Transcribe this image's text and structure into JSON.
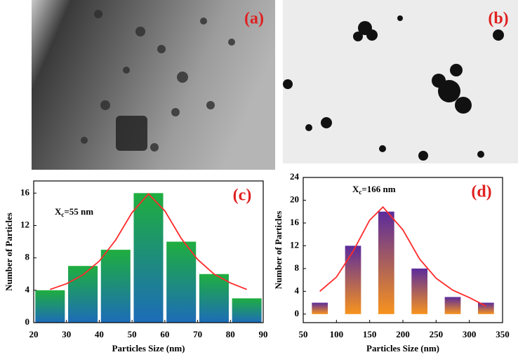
{
  "images": [
    {
      "label": "(a)"
    },
    {
      "label": "(b)"
    }
  ],
  "chart_data": [
    {
      "type": "bar",
      "panel_label": "(c)",
      "annotation": {
        "main": "X",
        "sub": "c",
        "rest": "=55 nm"
      },
      "x_label": "Particles Size (nm)",
      "y_label": "Number of Particles",
      "x": [
        25,
        35,
        45,
        55,
        65,
        75,
        85
      ],
      "bar_width": 9,
      "values": [
        4,
        7,
        9,
        16,
        10,
        6,
        3
      ],
      "color": [
        "#1fae3f",
        "#1d6cb8"
      ],
      "fit": {
        "color": "#ff2a2a",
        "x": [
          25,
          30,
          35,
          40,
          45,
          50,
          55,
          60,
          65,
          70,
          75,
          80,
          85
        ],
        "values": [
          4.1,
          4.8,
          5.9,
          7.6,
          10.2,
          13.6,
          15.9,
          13.8,
          10.4,
          7.8,
          6.0,
          4.9,
          4.1
        ]
      },
      "xlim": [
        20,
        90
      ],
      "ylim": [
        0,
        17.5
      ],
      "xticks": [
        20,
        30,
        40,
        50,
        60,
        70,
        80,
        90
      ],
      "yticks": [
        0,
        4,
        8,
        12,
        16
      ]
    },
    {
      "type": "bar",
      "panel_label": "(d)",
      "annotation": {
        "main": "X",
        "sub": "c",
        "rest": "=166 nm"
      },
      "x_label": "Particles Size (nm)",
      "y_label": "Number of Particles",
      "x": [
        75,
        125,
        175,
        225,
        275,
        325
      ],
      "bar_width": 24,
      "values": [
        2,
        12,
        18,
        8,
        3,
        2
      ],
      "color": [
        "#5b2b9c",
        "#f7931e"
      ],
      "fit": {
        "color": "#ff2a2a",
        "x": [
          75,
          100,
          125,
          150,
          170,
          200,
          225,
          250,
          275,
          300,
          325
        ],
        "values": [
          4,
          6.5,
          11,
          16.5,
          18.8,
          14.8,
          9.7,
          6.3,
          4.2,
          2.9,
          1.4
        ]
      },
      "xlim": [
        50,
        350
      ],
      "ylim": [
        -1.5,
        24
      ],
      "xticks": [
        50,
        100,
        150,
        200,
        250,
        300,
        350
      ],
      "yticks": [
        0,
        4,
        8,
        12,
        16,
        20,
        24
      ]
    }
  ]
}
